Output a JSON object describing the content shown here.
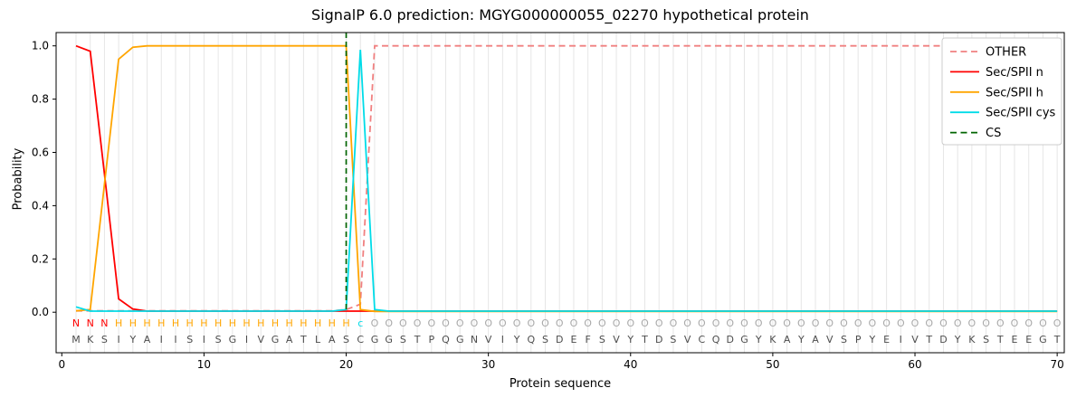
{
  "chart_data": {
    "type": "line",
    "title": "SignalP 6.0 prediction: MGYG000000055_02270 hypothetical protein",
    "xlabel": "Protein sequence",
    "ylabel": "Probability",
    "xlim": [
      -0.4,
      70.5
    ],
    "ylim": [
      0.0,
      1.05
    ],
    "xticks": [
      0,
      10,
      20,
      30,
      40,
      50,
      60,
      70
    ],
    "yticks": [
      0.0,
      0.2,
      0.4,
      0.6,
      0.8,
      1.0
    ],
    "grid": "vertical-line-per-residue",
    "grid_color": "#e6e6e6",
    "background": "#ffffff",
    "legend_position": "upper-right",
    "sequence": "MKSIYAIISISGIVGATLASCGGSTPQGNVIYQSDEFSVYTDSVCQDGYKAYAVSPYEIVTDYKSTEEGT",
    "annotation": "NNNHHHHHHHHHHHHHHHHHcOOOOOOOOOOOOOOOOOOOOOOOOOOOOOOOOOOOOOOOOOOOOOOOOO",
    "annotation_colors": {
      "N": "#ff0000",
      "H": "#ffa500",
      "c": "#00dce8",
      "O": "#a9a9a9"
    },
    "sequence_color": "#4d4d4d",
    "series": [
      {
        "name": "OTHER",
        "color": "#f08080",
        "dash": true,
        "values": [
          0.005,
          0.005,
          0.005,
          0.005,
          0.005,
          0.005,
          0.005,
          0.005,
          0.005,
          0.005,
          0.005,
          0.005,
          0.005,
          0.005,
          0.005,
          0.005,
          0.005,
          0.005,
          0.005,
          0.01,
          0.03,
          1.0,
          1.0,
          1.0,
          1.0,
          1.0,
          1.0,
          1.0,
          1.0,
          1.0,
          1.0,
          1.0,
          1.0,
          1.0,
          1.0,
          1.0,
          1.0,
          1.0,
          1.0,
          1.0,
          1.0,
          1.0,
          1.0,
          1.0,
          1.0,
          1.0,
          1.0,
          1.0,
          1.0,
          1.0,
          1.0,
          1.0,
          1.0,
          1.0,
          1.0,
          1.0,
          1.0,
          1.0,
          1.0,
          1.0,
          1.0,
          1.0,
          1.0,
          1.0,
          1.0,
          1.0,
          1.0,
          1.0,
          1.0,
          1.0
        ]
      },
      {
        "name": "Sec/SPII n",
        "color": "#ff0000",
        "dash": false,
        "values": [
          1.0,
          0.98,
          0.52,
          0.05,
          0.012,
          0.004,
          0.004,
          0.004,
          0.004,
          0.004,
          0.004,
          0.004,
          0.004,
          0.004,
          0.004,
          0.004,
          0.004,
          0.004,
          0.004,
          0.004,
          0.004,
          0.004,
          0.004,
          0.004,
          0.004,
          0.004,
          0.004,
          0.004,
          0.004,
          0.004,
          0.004,
          0.004,
          0.004,
          0.004,
          0.004,
          0.004,
          0.004,
          0.004,
          0.004,
          0.004,
          0.004,
          0.004,
          0.004,
          0.004,
          0.004,
          0.004,
          0.004,
          0.004,
          0.004,
          0.004,
          0.004,
          0.004,
          0.004,
          0.004,
          0.004,
          0.004,
          0.004,
          0.004,
          0.004,
          0.004,
          0.004,
          0.004,
          0.004,
          0.004,
          0.004,
          0.004,
          0.004,
          0.004,
          0.004,
          0.004
        ]
      },
      {
        "name": "Sec/SPII h",
        "color": "#ffa500",
        "dash": false,
        "values": [
          0.005,
          0.01,
          0.48,
          0.95,
          0.995,
          1.0,
          1.0,
          1.0,
          1.0,
          1.0,
          1.0,
          1.0,
          1.0,
          1.0,
          1.0,
          1.0,
          1.0,
          1.0,
          1.0,
          1.0,
          0.01,
          0.003,
          0.003,
          0.003,
          0.003,
          0.003,
          0.003,
          0.003,
          0.003,
          0.003,
          0.003,
          0.003,
          0.003,
          0.003,
          0.003,
          0.003,
          0.003,
          0.003,
          0.003,
          0.003,
          0.003,
          0.003,
          0.003,
          0.003,
          0.003,
          0.003,
          0.003,
          0.003,
          0.003,
          0.003,
          0.003,
          0.003,
          0.003,
          0.003,
          0.003,
          0.003,
          0.003,
          0.003,
          0.003,
          0.003,
          0.003,
          0.003,
          0.003,
          0.003,
          0.003,
          0.003,
          0.003,
          0.003,
          0.003,
          0.003
        ]
      },
      {
        "name": "Sec/SPII cys",
        "color": "#00dce8",
        "dash": false,
        "values": [
          0.02,
          0.004,
          0.004,
          0.004,
          0.004,
          0.004,
          0.004,
          0.004,
          0.004,
          0.004,
          0.004,
          0.004,
          0.004,
          0.004,
          0.004,
          0.004,
          0.004,
          0.004,
          0.004,
          0.01,
          0.985,
          0.01,
          0.004,
          0.004,
          0.004,
          0.004,
          0.004,
          0.004,
          0.004,
          0.004,
          0.004,
          0.004,
          0.004,
          0.004,
          0.004,
          0.004,
          0.004,
          0.004,
          0.004,
          0.004,
          0.004,
          0.004,
          0.004,
          0.004,
          0.004,
          0.004,
          0.004,
          0.004,
          0.004,
          0.004,
          0.004,
          0.004,
          0.004,
          0.004,
          0.004,
          0.004,
          0.004,
          0.004,
          0.004,
          0.004,
          0.004,
          0.004,
          0.004,
          0.004,
          0.004,
          0.004,
          0.004,
          0.004,
          0.004,
          0.004
        ]
      }
    ],
    "cs_line": {
      "name": "CS",
      "x": 20,
      "color": "#006400",
      "dash": true
    }
  }
}
